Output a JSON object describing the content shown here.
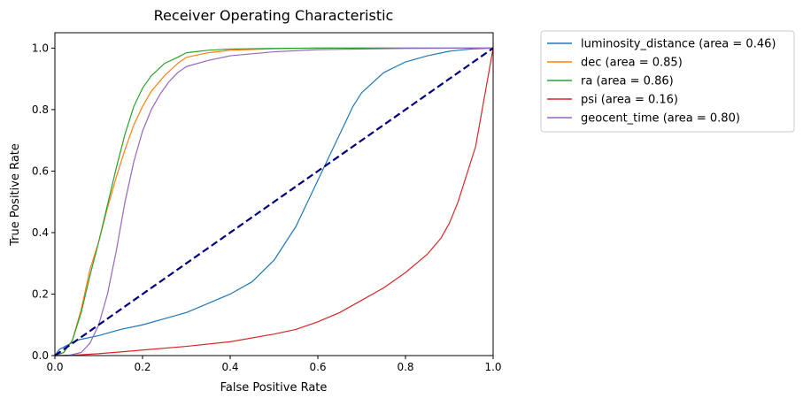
{
  "chart_data": {
    "type": "line",
    "title": "Receiver Operating Characteristic",
    "xlabel": "False Positive Rate",
    "ylabel": "True Positive Rate",
    "xlim": [
      0,
      1
    ],
    "ylim": [
      0,
      1.05
    ],
    "xticks": [
      "0.0",
      "0.2",
      "0.4",
      "0.6",
      "0.8",
      "1.0"
    ],
    "yticks": [
      "0.0",
      "0.2",
      "0.4",
      "0.6",
      "0.8",
      "1.0"
    ],
    "grid": false,
    "legend_position": "outside-right",
    "series": [
      {
        "name": "luminosity_distance (area = 0.46)",
        "color": "#1f77b4",
        "x": [
          0,
          0.01,
          0.03,
          0.05,
          0.1,
          0.15,
          0.2,
          0.25,
          0.3,
          0.35,
          0.4,
          0.45,
          0.5,
          0.55,
          0.6,
          0.62,
          0.65,
          0.68,
          0.7,
          0.75,
          0.8,
          0.85,
          0.9,
          0.95,
          1.0
        ],
        "y": [
          0,
          0.02,
          0.035,
          0.05,
          0.065,
          0.085,
          0.1,
          0.12,
          0.14,
          0.17,
          0.2,
          0.24,
          0.31,
          0.42,
          0.57,
          0.63,
          0.72,
          0.81,
          0.855,
          0.92,
          0.955,
          0.975,
          0.99,
          0.997,
          1.0
        ]
      },
      {
        "name": "dec (area = 0.85)",
        "color": "#ff7f0e",
        "x": [
          0,
          0.02,
          0.04,
          0.06,
          0.08,
          0.1,
          0.12,
          0.14,
          0.16,
          0.18,
          0.2,
          0.22,
          0.25,
          0.28,
          0.3,
          0.35,
          0.4,
          0.5,
          0.6,
          0.8,
          1.0
        ],
        "y": [
          0,
          0.01,
          0.05,
          0.15,
          0.28,
          0.37,
          0.48,
          0.58,
          0.67,
          0.75,
          0.81,
          0.86,
          0.91,
          0.95,
          0.97,
          0.985,
          0.993,
          0.998,
          1.0,
          1.0,
          1.0
        ]
      },
      {
        "name": "ra (area = 0.86)",
        "color": "#2ca02c",
        "x": [
          0,
          0.02,
          0.04,
          0.06,
          0.08,
          0.1,
          0.12,
          0.14,
          0.16,
          0.18,
          0.2,
          0.22,
          0.25,
          0.28,
          0.3,
          0.35,
          0.4,
          0.5,
          0.6,
          0.8,
          1.0
        ],
        "y": [
          0,
          0.01,
          0.05,
          0.14,
          0.26,
          0.37,
          0.49,
          0.61,
          0.72,
          0.81,
          0.87,
          0.91,
          0.95,
          0.97,
          0.985,
          0.993,
          0.997,
          0.999,
          1.0,
          1.0,
          1.0
        ]
      },
      {
        "name": "psi (area = 0.16)",
        "color": "#d62728",
        "x": [
          0,
          0.05,
          0.1,
          0.2,
          0.3,
          0.4,
          0.5,
          0.55,
          0.6,
          0.65,
          0.7,
          0.75,
          0.8,
          0.85,
          0.88,
          0.9,
          0.92,
          0.94,
          0.96,
          0.98,
          1.0
        ],
        "y": [
          0,
          0.002,
          0.006,
          0.018,
          0.03,
          0.045,
          0.07,
          0.085,
          0.11,
          0.14,
          0.18,
          0.22,
          0.27,
          0.33,
          0.38,
          0.43,
          0.5,
          0.59,
          0.68,
          0.84,
          1.0
        ]
      },
      {
        "name": "geocent_time (area = 0.80)",
        "color": "#9467bd",
        "x": [
          0,
          0.03,
          0.06,
          0.08,
          0.1,
          0.12,
          0.14,
          0.16,
          0.18,
          0.2,
          0.22,
          0.24,
          0.26,
          0.28,
          0.3,
          0.35,
          0.4,
          0.5,
          0.6,
          0.8,
          1.0
        ],
        "y": [
          0,
          0.0,
          0.01,
          0.04,
          0.1,
          0.2,
          0.34,
          0.5,
          0.63,
          0.73,
          0.8,
          0.85,
          0.89,
          0.92,
          0.94,
          0.96,
          0.975,
          0.988,
          0.995,
          0.999,
          1.0
        ]
      },
      {
        "name": "",
        "color": "#000080",
        "dashed": true,
        "x": [
          0,
          1
        ],
        "y": [
          0,
          1
        ]
      }
    ]
  }
}
